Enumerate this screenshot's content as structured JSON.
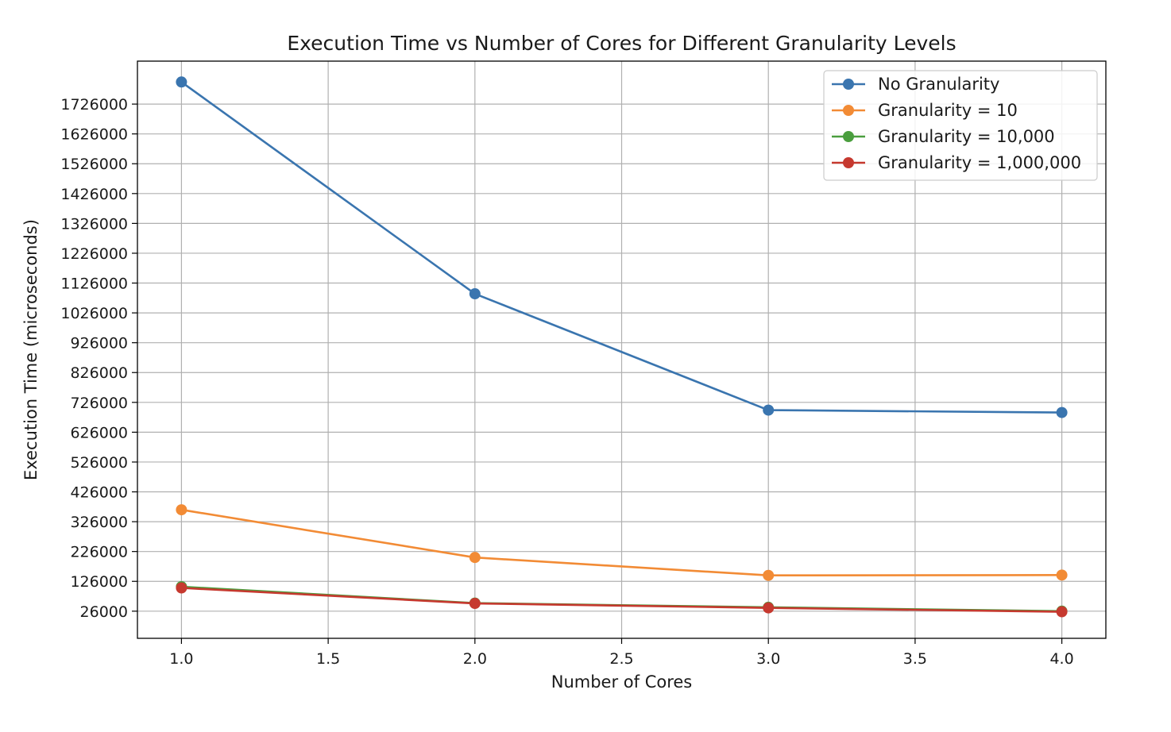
{
  "chart_data": {
    "type": "line",
    "title": "Execution Time vs Number of Cores for Different Granularity Levels",
    "xlabel": "Number of Cores",
    "ylabel": "Execution Time (microseconds)",
    "x": [
      1.0,
      2.0,
      3.0,
      4.0
    ],
    "xlim": [
      0.85,
      4.15
    ],
    "ylim": [
      -65000,
      1870000
    ],
    "xticks": [
      1.0,
      1.5,
      2.0,
      2.5,
      3.0,
      3.5,
      4.0
    ],
    "xtick_labels": [
      "1.0",
      "1.5",
      "2.0",
      "2.5",
      "3.0",
      "3.5",
      "4.0"
    ],
    "yticks": [
      26000,
      126000,
      226000,
      326000,
      426000,
      526000,
      626000,
      726000,
      826000,
      926000,
      1026000,
      1126000,
      1226000,
      1326000,
      1426000,
      1526000,
      1626000,
      1726000
    ],
    "ytick_labels": [
      "26000",
      "126000",
      "226000",
      "326000",
      "426000",
      "526000",
      "626000",
      "726000",
      "826000",
      "926000",
      "1026000",
      "1126000",
      "1226000",
      "1326000",
      "1426000",
      "1526000",
      "1626000",
      "1726000"
    ],
    "grid": true,
    "legend_position": "top-right",
    "series": [
      {
        "name": "No Granularity",
        "color": "#3a75af",
        "values": [
          1800000,
          1090000,
          700000,
          692000
        ]
      },
      {
        "name": "Granularity = 10",
        "color": "#f28b35",
        "values": [
          366000,
          206000,
          146000,
          147000
        ]
      },
      {
        "name": "Granularity = 10,000",
        "color": "#4a9e3e",
        "values": [
          108000,
          53000,
          39000,
          26000
        ]
      },
      {
        "name": "Granularity = 1,000,000",
        "color": "#c6392f",
        "values": [
          104000,
          52000,
          37000,
          24000
        ]
      }
    ]
  }
}
